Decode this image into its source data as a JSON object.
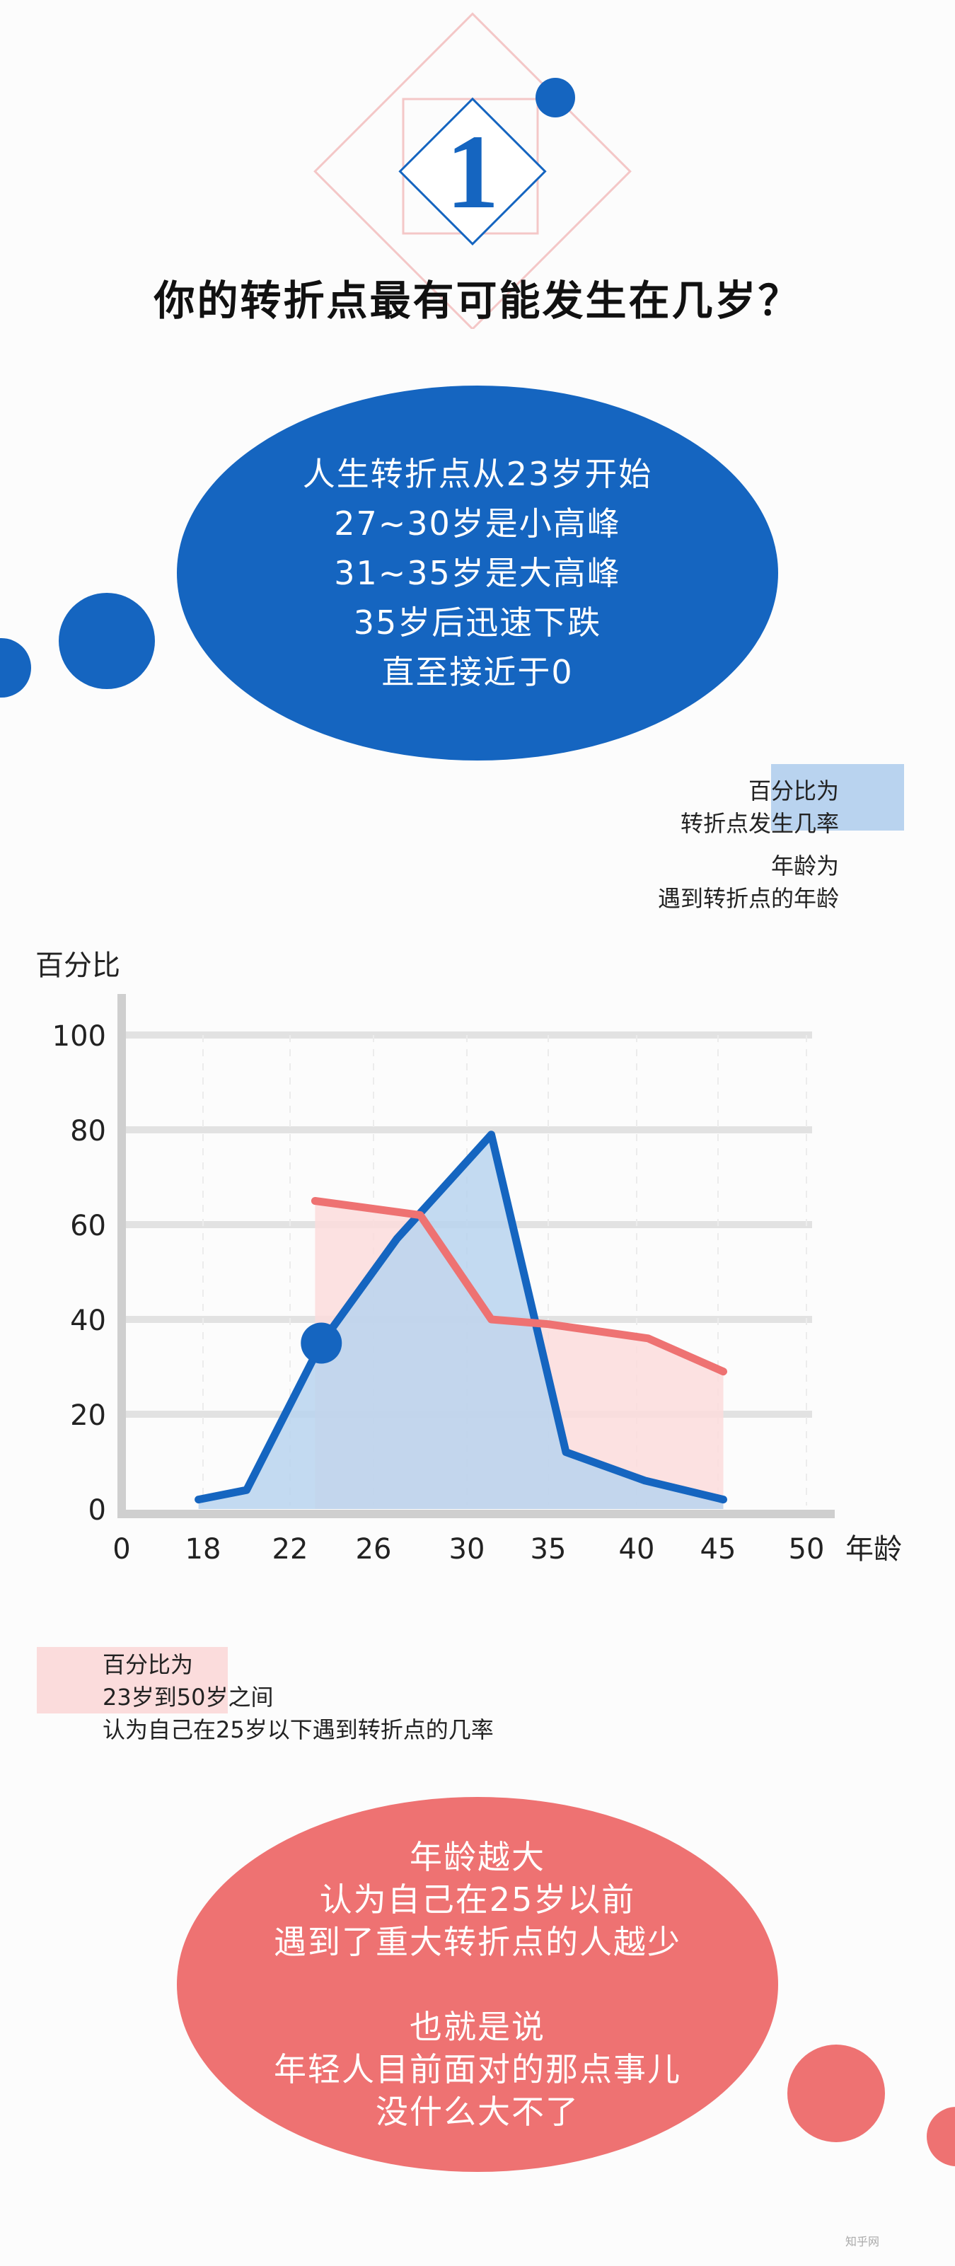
{
  "header": {
    "number": "1",
    "title": "你的转折点最有可能发生在几岁？"
  },
  "summary_bubble": {
    "lines": [
      "人生转折点从23岁开始",
      "27~30岁是小高峰",
      "31~35岁是大高峰",
      "35岁后迅速下跌",
      "直至接近于0"
    ]
  },
  "legend_top": {
    "lines": [
      "百分比为",
      "转折点发生几率",
      "年龄为",
      "遇到转折点的年龄"
    ]
  },
  "legend_bottom": {
    "lines": [
      "百分比为",
      "23岁到50岁之间",
      "认为自己在25岁以下遇到转折点的几率"
    ]
  },
  "conclusion_bubble": {
    "lines": [
      "年龄越大",
      "认为自己在25岁以前",
      "遇到了重大转折点的人越少",
      "",
      "也就是说",
      "年轻人目前面对的那点事儿",
      "没什么大不了"
    ]
  },
  "colors": {
    "blue": "#1565c0",
    "blue_fill": "#b9d3ef",
    "red": "#ee7272",
    "red_fill": "#fbdcdc",
    "pink_frame": "#f4c7c7"
  },
  "chart_data": {
    "type": "line",
    "ylabel": "百分比",
    "xlabel": "年龄",
    "x_ticks": [
      "0",
      "18",
      "22",
      "26",
      "30",
      "35",
      "40",
      "45",
      "50"
    ],
    "y_ticks": [
      "0",
      "20",
      "40",
      "60",
      "80",
      "100"
    ],
    "ylim": [
      0,
      100
    ],
    "grid": "horizontal",
    "series": [
      {
        "name": "转折点发生几率",
        "color": "#1565c0",
        "fill": "#b9d3ef",
        "points": [
          [
            17,
            2
          ],
          [
            20,
            4
          ],
          [
            23.5,
            35
          ],
          [
            27,
            57
          ],
          [
            31.5,
            79
          ],
          [
            36,
            12
          ],
          [
            40.5,
            6
          ],
          [
            45.3,
            2
          ]
        ]
      },
      {
        "name": "认为自己在25岁以下遇到转折点的几率",
        "color": "#ee7272",
        "fill": "#fbdcdc",
        "points": [
          [
            23.2,
            65
          ],
          [
            28,
            62
          ],
          [
            31.5,
            40
          ],
          [
            35,
            39
          ],
          [
            40.7,
            36
          ],
          [
            45.3,
            29
          ]
        ]
      }
    ],
    "highlight_point": [
      23.5,
      35
    ]
  },
  "watermark": "知乎网"
}
